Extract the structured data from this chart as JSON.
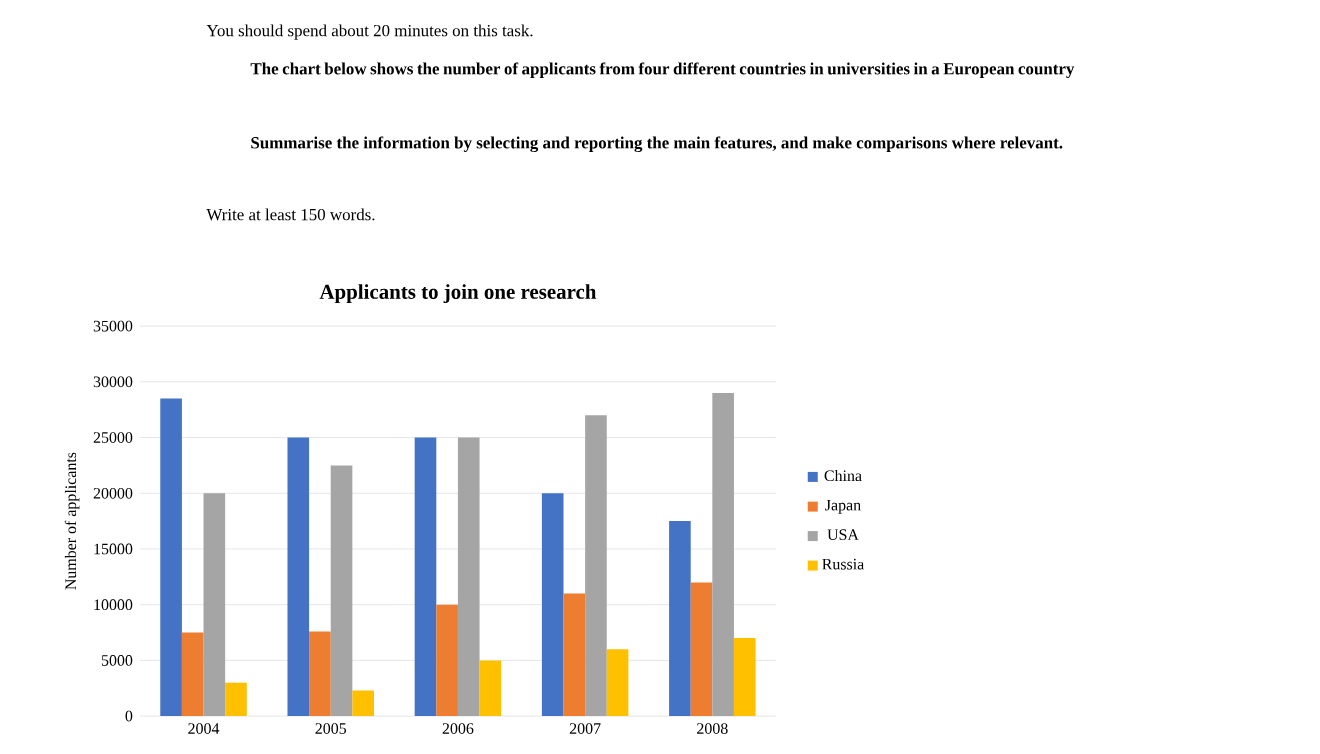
{
  "chart_data": {
    "type": "bar",
    "title": "Applicants to join one research",
    "ylabel": "Number of applicants",
    "annotations": [
      "You should spend about 20 minutes on this task.",
      "The chart below shows the number of applicants from four different countries in universities in a European country",
      "Summarise the information by selecting and reporting the main features, and make comparisons where relevant.",
      "Write at least 150 words."
    ],
    "categories": [
      "2004",
      "2005",
      "2006",
      "2007",
      "2008"
    ],
    "series": [
      {
        "name": "China",
        "color": "#4472c4",
        "values": [
          28500,
          25000,
          25000,
          20000,
          17500
        ]
      },
      {
        "name": "Japan",
        "color": "#ed7d31",
        "values": [
          7500,
          7600,
          10000,
          11000,
          12000
        ]
      },
      {
        "name": "USA",
        "color": "#a5a5a5",
        "values": [
          20000,
          22500,
          25000,
          27000,
          29000
        ]
      },
      {
        "name": "Russia",
        "color": "#ffc000",
        "values": [
          3000,
          2300,
          5000,
          6000,
          7000
        ]
      }
    ],
    "ylim": [
      0,
      35000
    ],
    "yticks": [
      0,
      5000,
      10000,
      15000,
      20000,
      25000,
      30000,
      35000
    ],
    "grid": "y",
    "legend": "right"
  }
}
